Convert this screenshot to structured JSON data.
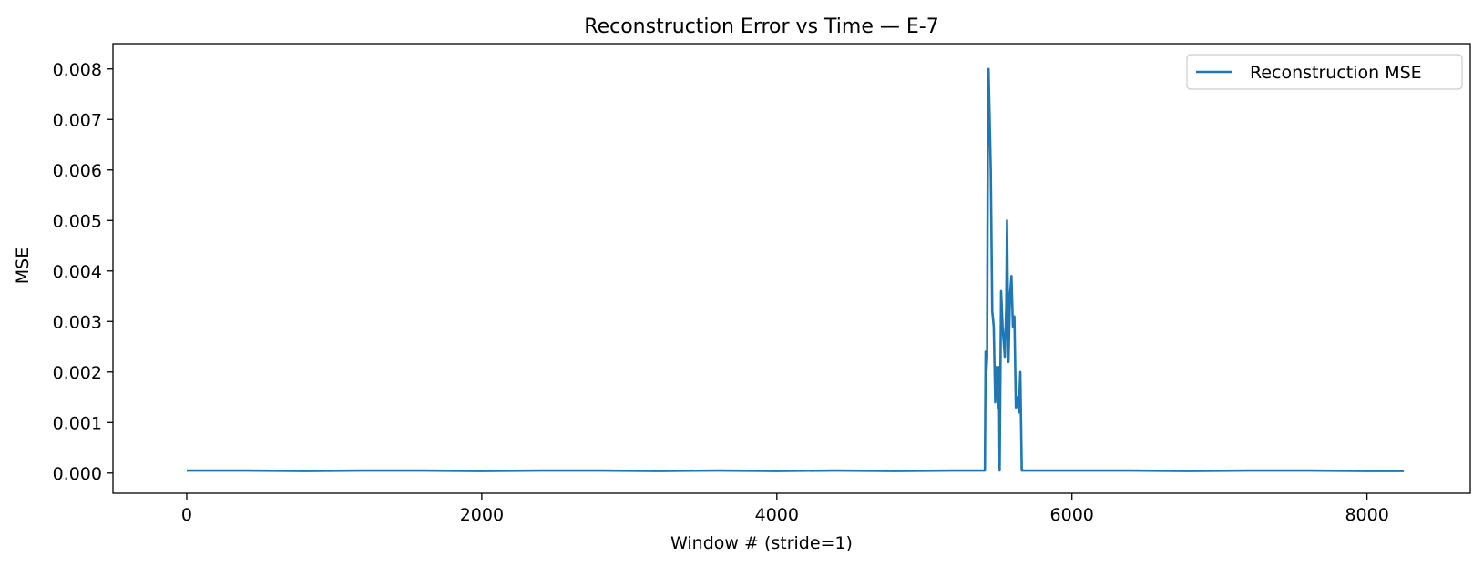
{
  "chart_data": {
    "type": "line",
    "title": "Reconstruction Error vs Time — E-7",
    "xlabel": "Window # (stride=1)",
    "ylabel": "MSE",
    "xlim": [
      -500,
      8700
    ],
    "ylim": [
      -0.0004,
      0.0085
    ],
    "x_ticks": [
      0,
      2000,
      4000,
      6000,
      8000
    ],
    "x_tick_labels": [
      "0",
      "2000",
      "4000",
      "6000",
      "8000"
    ],
    "y_ticks": [
      0,
      0.001,
      0.002,
      0.003,
      0.004,
      0.005,
      0.006,
      0.007,
      0.008
    ],
    "y_tick_labels": [
      "0.000",
      "0.001",
      "0.002",
      "0.003",
      "0.004",
      "0.005",
      "0.006",
      "0.007",
      "0.008"
    ],
    "grid": false,
    "legend_position": "upper right",
    "series": [
      {
        "name": "Reconstruction MSE",
        "color": "#1f77b4",
        "x": [
          0,
          400,
          800,
          1200,
          1600,
          2000,
          2400,
          2800,
          3200,
          3600,
          4000,
          4400,
          4800,
          5200,
          5410,
          5415,
          5420,
          5425,
          5430,
          5435,
          5450,
          5460,
          5470,
          5480,
          5490,
          5500,
          5505,
          5510,
          5520,
          5530,
          5545,
          5555,
          5560,
          5570,
          5580,
          5590,
          5600,
          5610,
          5620,
          5630,
          5640,
          5650,
          5660,
          5700,
          6000,
          6400,
          6800,
          7200,
          7600,
          8000,
          8250
        ],
        "y": [
          5e-05,
          5e-05,
          4e-05,
          5e-05,
          5e-05,
          4e-05,
          5e-05,
          5e-05,
          4e-05,
          5e-05,
          4e-05,
          5e-05,
          4e-05,
          5e-05,
          5e-05,
          0.0024,
          0.002,
          0.0023,
          0.0065,
          0.008,
          0.006,
          0.0032,
          0.0029,
          0.0014,
          0.0021,
          0.0013,
          0.0021,
          5e-05,
          0.0036,
          0.0029,
          0.0023,
          0.0033,
          0.005,
          0.0022,
          0.0035,
          0.0039,
          0.0029,
          0.0031,
          0.0013,
          0.0015,
          0.0012,
          0.002,
          5e-05,
          5e-05,
          5e-05,
          5e-05,
          4e-05,
          5e-05,
          5e-05,
          4e-05,
          4e-05
        ]
      }
    ]
  }
}
